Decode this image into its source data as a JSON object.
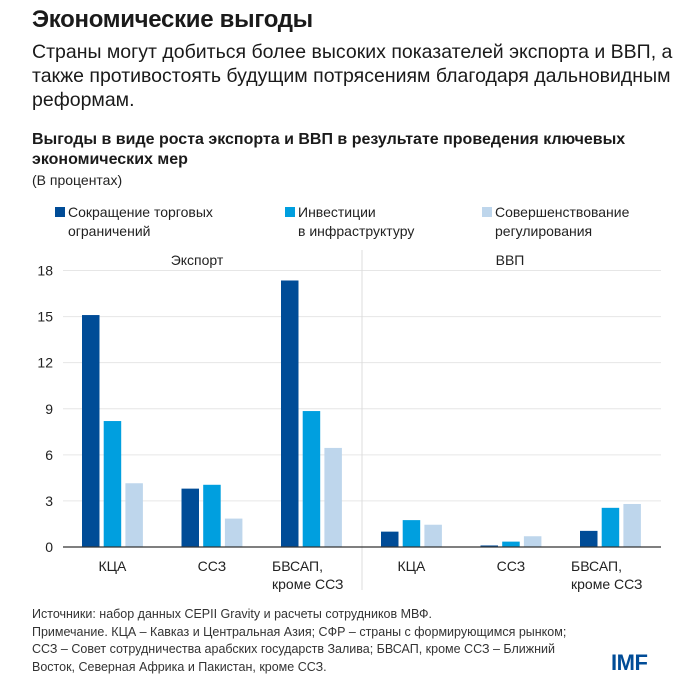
{
  "header": {
    "title": "Экономические выгоды",
    "subtitle": "Страны могут добиться более высоких показателей экспорта и ВВП, а также противостоять будущим потрясениям благодаря дальновидным реформам."
  },
  "chart_data": {
    "type": "bar",
    "title": "Выгоды в виде роста экспорта и ВВП в результате проведения ключевых экономических мер",
    "units": "(В процентах)",
    "ylim": [
      0,
      18
    ],
    "yticks": [
      "18",
      "15",
      "12",
      "9",
      "6",
      "3",
      "0"
    ],
    "grid": true,
    "legend_position": "top",
    "colors": [
      "#004c97",
      "#009fdf",
      "#bed6ec"
    ],
    "series_names": [
      "Сокращение торговых ограничений",
      "Инвестиции в инфраструктуру",
      "Совершенствование регулирования"
    ],
    "legend": [
      {
        "line1": "Сокращение торговых",
        "line2": "ограничений"
      },
      {
        "line1": "Инвестиции",
        "line2": "в инфраструктуру"
      },
      {
        "line1": "Совершенствование",
        "line2": "регулирования"
      }
    ],
    "panels": [
      {
        "label": "Экспорт",
        "categories": [
          {
            "line1": "КЦА",
            "line2": ""
          },
          {
            "line1": "ССЗ",
            "line2": ""
          },
          {
            "line1": "БВСАП,",
            "line2": "кроме ССЗ"
          }
        ],
        "series": [
          {
            "name": "Сокращение торговых ограничений",
            "values": [
              15.1,
              3.8,
              17.35
            ]
          },
          {
            "name": "Инвестиции в инфраструктуру",
            "values": [
              8.2,
              4.05,
              8.85
            ]
          },
          {
            "name": "Совершенствование регулирования",
            "values": [
              4.15,
              1.85,
              6.45
            ]
          }
        ]
      },
      {
        "label": "ВВП",
        "categories": [
          {
            "line1": "КЦА",
            "line2": ""
          },
          {
            "line1": "ССЗ",
            "line2": ""
          },
          {
            "line1": "БВСАП,",
            "line2": "кроме ССЗ"
          }
        ],
        "series": [
          {
            "name": "Сокращение торговых ограничений",
            "values": [
              1.0,
              0.1,
              1.05
            ]
          },
          {
            "name": "Инвестиции в инфраструктуру",
            "values": [
              1.75,
              0.35,
              2.55
            ]
          },
          {
            "name": "Совершенствование регулирования",
            "values": [
              1.45,
              0.7,
              2.8
            ]
          }
        ]
      }
    ]
  },
  "footer": {
    "sources": "Источники: набор данных CEPII Gravity и расчеты сотрудников МВФ.",
    "note": "Примечание. КЦА – Кавказ и Центральная Азия; СФР – страны с формирующимся рынком; ССЗ – Совет сотрудничества арабских государств Залива; БВСАП, кроме ССЗ – Ближний Восток, Северная Африка и Пакистан, кроме ССЗ.",
    "logo": "IMF"
  }
}
